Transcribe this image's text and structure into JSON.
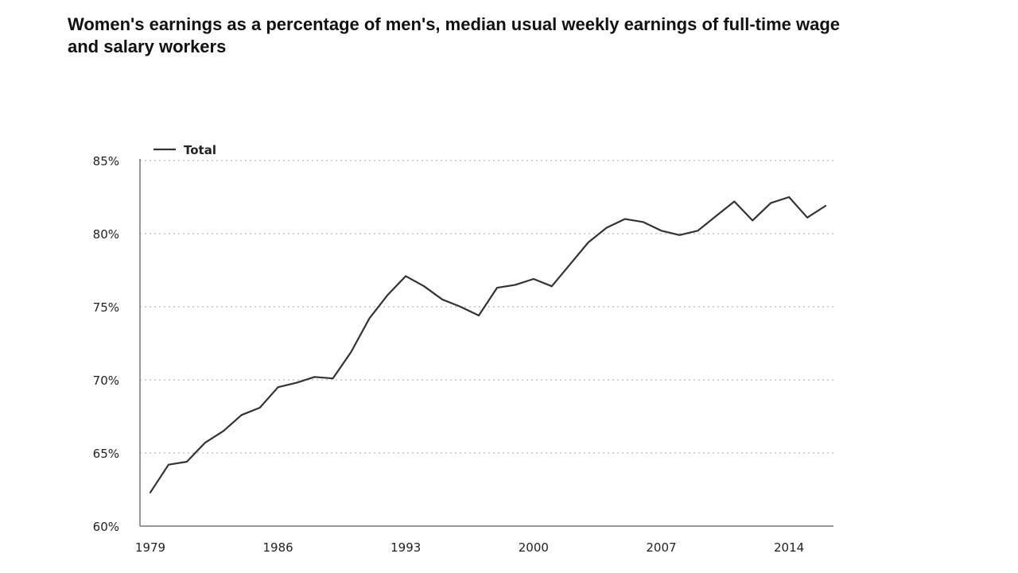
{
  "chart_data": {
    "type": "line",
    "title": "Women's earnings as a percentage of men's, median usual weekly earnings of full-time wage and salary workers",
    "x": [
      1979,
      1980,
      1981,
      1982,
      1983,
      1984,
      1985,
      1986,
      1987,
      1988,
      1989,
      1990,
      1991,
      1992,
      1993,
      1994,
      1995,
      1996,
      1997,
      1998,
      1999,
      2000,
      2001,
      2002,
      2003,
      2004,
      2005,
      2006,
      2007,
      2008,
      2009,
      2010,
      2011,
      2012,
      2013,
      2014,
      2015,
      2016
    ],
    "series": [
      {
        "name": "Total",
        "color": "#333333",
        "values": [
          62.3,
          64.2,
          64.4,
          65.7,
          66.5,
          67.6,
          68.1,
          69.5,
          69.8,
          70.2,
          70.1,
          71.9,
          74.2,
          75.8,
          77.1,
          76.4,
          75.5,
          75.0,
          74.4,
          76.3,
          76.5,
          76.9,
          76.4,
          77.9,
          79.4,
          80.4,
          81.0,
          80.8,
          80.2,
          79.9,
          80.2,
          81.2,
          82.2,
          80.9,
          82.1,
          82.5,
          81.1,
          81.9
        ]
      }
    ],
    "x_ticks": [
      1979,
      1986,
      1993,
      2000,
      2007,
      2014
    ],
    "x_tick_labels": [
      "1979",
      "1986",
      "1993",
      "2000",
      "2007",
      "2014"
    ],
    "y_ticks": [
      60,
      65,
      70,
      75,
      80,
      85
    ],
    "y_tick_labels": [
      "60%",
      "65%",
      "70%",
      "75%",
      "80%",
      "85%"
    ],
    "xlim": [
      1979,
      2016
    ],
    "ylim": [
      60,
      85
    ],
    "xlabel": "",
    "ylabel": "",
    "grid": "horizontal-dotted",
    "legend_position": "top-left"
  }
}
